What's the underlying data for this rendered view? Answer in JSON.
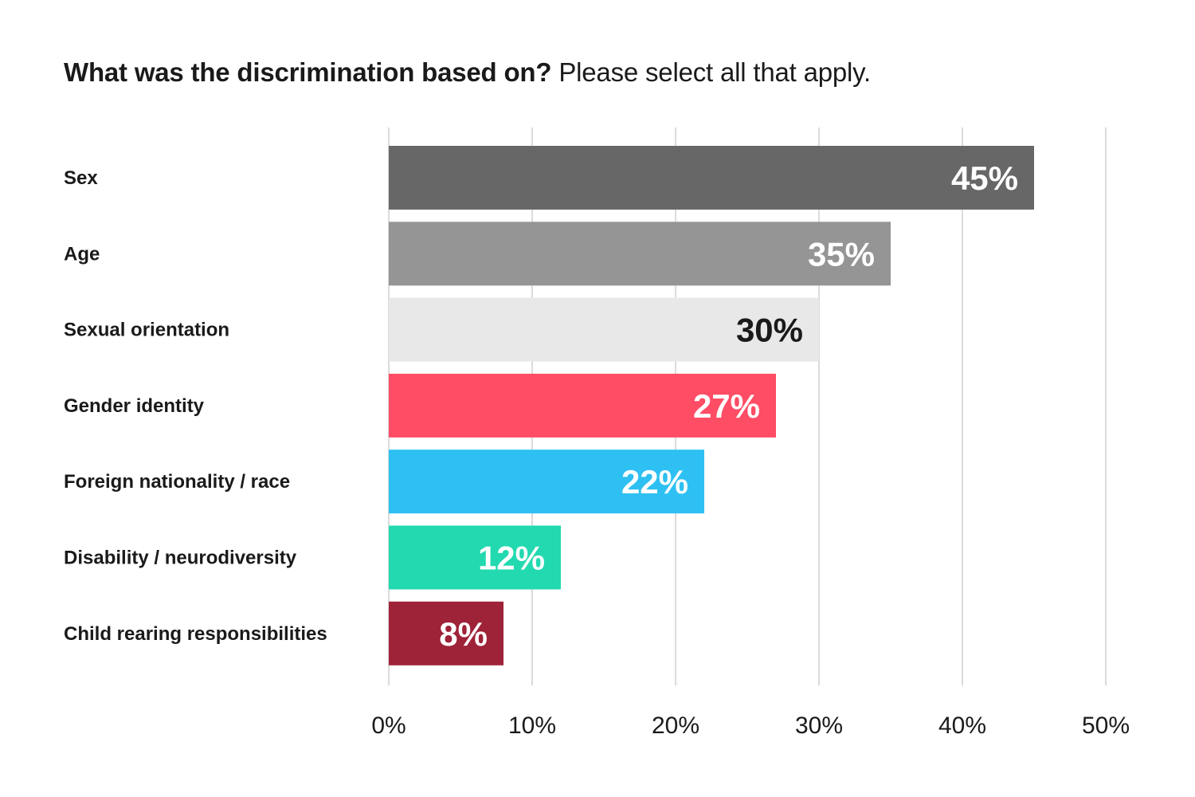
{
  "chart_data": {
    "type": "bar",
    "orientation": "horizontal",
    "title": "What was the discrimination based on?",
    "subtitle": "Please select all that apply.",
    "xlabel": "",
    "ylabel": "",
    "xlim": [
      0,
      50
    ],
    "x_ticks": [
      0,
      10,
      20,
      30,
      40,
      50
    ],
    "x_tick_labels": [
      "0%",
      "10%",
      "20%",
      "30%",
      "40%",
      "50%"
    ],
    "grid": "vertical",
    "legend": "none",
    "categories": [
      "Sex",
      "Age",
      "Sexual orientation",
      "Gender identity",
      "Foreign nationality / race",
      "Disability / neurodiversity",
      "Child rearing responsibilities"
    ],
    "values": [
      45,
      35,
      30,
      27,
      22,
      12,
      8
    ],
    "value_labels": [
      "45%",
      "35%",
      "30%",
      "27%",
      "22%",
      "12%",
      "8%"
    ],
    "bar_colors": [
      "#676767",
      "#959595",
      "#e8e8e8",
      "#ff4d65",
      "#2ec0f2",
      "#22d9b0",
      "#9e2238"
    ],
    "label_colors": [
      "#ffffff",
      "#ffffff",
      "#1a1a1a",
      "#ffffff",
      "#ffffff",
      "#ffffff",
      "#ffffff"
    ],
    "grid_color": "#cfcfcf"
  }
}
